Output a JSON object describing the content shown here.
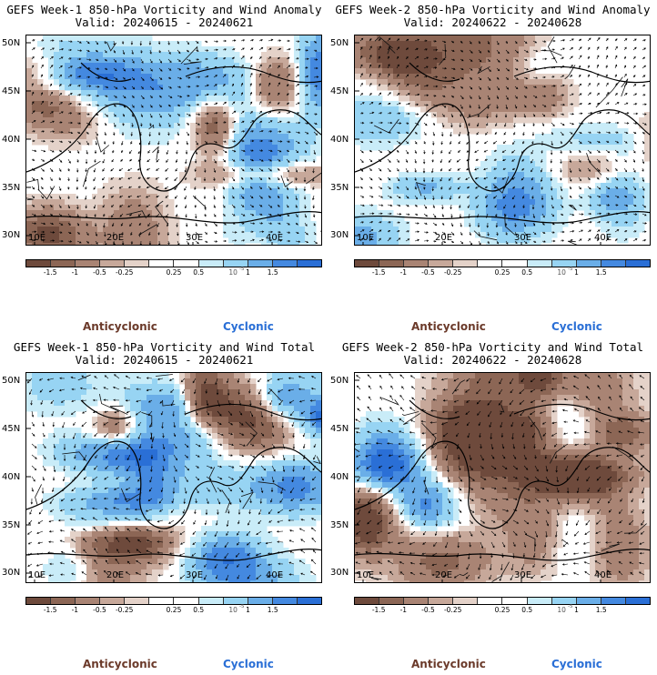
{
  "panels": [
    {
      "title": "GEFS Week-1 850-hPa Vorticity and Wind Anomaly",
      "valid": "Valid: 20240615 - 20240621",
      "seed": 11
    },
    {
      "title": "GEFS Week-2 850-hPa Vorticity and Wind Anomaly",
      "valid": "Valid: 20240622 - 20240628",
      "seed": 23
    },
    {
      "title": "GEFS Week-1 850-hPa Vorticity and Wind Total",
      "valid": "Valid: 20240615 - 20240621",
      "seed": 37
    },
    {
      "title": "GEFS Week-2 850-hPa Vorticity and Wind Total",
      "valid": "Valid: 20240622 - 20240628",
      "seed": 51
    }
  ],
  "lat_labels": [
    "50N",
    "45N",
    "40N",
    "35N",
    "30N"
  ],
  "lon_labels": [
    "10E",
    "20E",
    "30E",
    "40E"
  ],
  "colorbar": {
    "colors": [
      "#6e4a3c",
      "#8c6655",
      "#a98474",
      "#c7a89a",
      "#e4d2c9",
      "#ffffff",
      "#ffffff",
      "#c9ecf8",
      "#97d4f3",
      "#6aaee8",
      "#4489e0",
      "#2a6fd6"
    ],
    "labels": [
      "-1.5",
      "-1",
      "-0.5",
      "-0.25",
      "0.25",
      "0.5",
      "1",
      "1.5"
    ],
    "scale_label": "10",
    "exponent_label": "-5"
  },
  "legend": {
    "anticyclonic": "Anticyclonic",
    "cyclonic": "Cyclonic"
  }
}
